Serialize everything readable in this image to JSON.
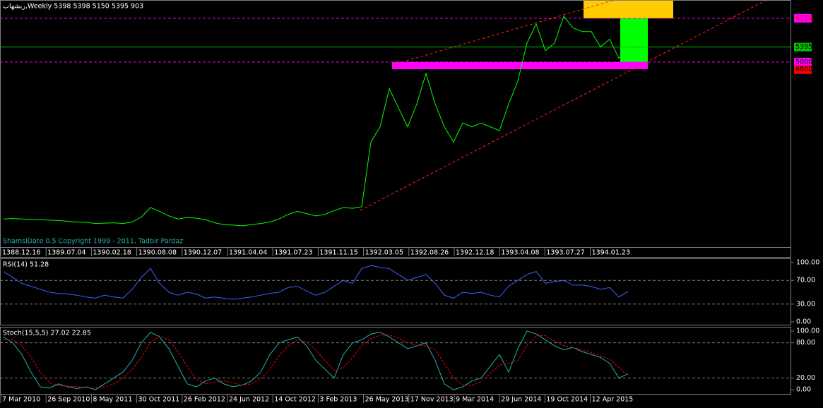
{
  "chart_data": [
    {
      "type": "line",
      "title": "ربشهاب,Weekly  5398 5398 5150 5395  903",
      "annotation": "ShamsiDate 0.5 Copyright 1999 - 2011, Tadbir Pardaz",
      "date_labels": [
        "1388.12.16",
        "1389.07.04",
        "1390.02.18",
        "1390.08.08",
        "1390.12.07",
        "1391.04.04",
        "1391.07.23",
        "1391.11.15",
        "1392.03.05",
        "1392.08.26",
        "1392.12.18",
        "1393.04.08",
        "1393.07.27",
        "1394.01.23"
      ],
      "values": [
        880,
        890,
        880,
        870,
        860,
        850,
        840,
        820,
        800,
        790,
        760,
        770,
        780,
        760,
        800,
        930,
        1180,
        1080,
        960,
        880,
        920,
        900,
        860,
        780,
        730,
        720,
        700,
        730,
        760,
        800,
        880,
        1000,
        1080,
        1020,
        960,
        1000,
        1100,
        1180,
        1160,
        1200,
        2900,
        3300,
        4300,
        3800,
        3300,
        3900,
        4700,
        3900,
        3300,
        2900,
        3400,
        3300,
        3400,
        3300,
        3200,
        3900,
        4500,
        5500,
        6000,
        5300,
        5500,
        6200,
        5900,
        5800,
        5800,
        5400,
        5600,
        5100,
        5395
      ],
      "color": "#00ff00",
      "ylim": [
        235,
        6630
      ],
      "levels": [
        {
          "value": 6150,
          "color": "#ff00ff",
          "text_color": "#ff0000",
          "line": "dashed"
        },
        {
          "value": 5395,
          "color": "#00c000",
          "text_color": "#000000",
          "line": "solid"
        },
        {
          "value": 5000,
          "color": "#ff00ff",
          "text_color": "#000000",
          "line": "dashed"
        },
        {
          "value": 4800,
          "color": "#ff0000",
          "text_color": "#000000",
          "line": "none"
        }
      ]
    },
    {
      "type": "line",
      "title": "RSI(14) 51.28",
      "values": [
        85,
        75,
        65,
        60,
        55,
        50,
        48,
        47,
        45,
        42,
        40,
        45,
        42,
        40,
        55,
        75,
        90,
        65,
        50,
        45,
        50,
        47,
        40,
        42,
        40,
        38,
        40,
        42,
        45,
        48,
        50,
        58,
        60,
        52,
        45,
        50,
        60,
        70,
        65,
        90,
        95,
        92,
        90,
        80,
        70,
        75,
        80,
        65,
        45,
        40,
        50,
        48,
        50,
        45,
        42,
        60,
        70,
        80,
        85,
        65,
        68,
        70,
        62,
        62,
        60,
        55,
        58,
        42,
        51.28
      ],
      "color": "#4060ff",
      "ylim": [
        -6,
        106
      ],
      "yticks": [
        {
          "value": 100,
          "label": "100.00"
        },
        {
          "value": 70,
          "label": "70.00"
        },
        {
          "value": 30,
          "label": "30.00"
        },
        {
          "value": 0,
          "label": "0.00"
        }
      ]
    },
    {
      "type": "line",
      "title": "Stoch(15,5,5) 27.02 22.85",
      "date_labels": [
        "7 Mar 2010",
        "26 Sep 2010",
        "8 May 2011",
        "30 Oct 2011",
        "26 Feb 2012",
        "24 Jun 2012",
        "14 Oct 2012",
        "3 Feb 2013",
        "26 May 2013",
        "17 Nov 2013",
        "9 Mar 2014",
        "29 Jun 2014",
        "19 Oct 2014",
        "12 Apr 2015"
      ],
      "series": [
        {
          "color": "#20b2aa",
          "dashed": false,
          "values": [
            90,
            80,
            60,
            30,
            5,
            3,
            10,
            5,
            2,
            5,
            0,
            10,
            20,
            30,
            50,
            80,
            98,
            90,
            70,
            40,
            10,
            5,
            15,
            20,
            10,
            5,
            8,
            15,
            30,
            60,
            80,
            85,
            90,
            75,
            50,
            35,
            20,
            60,
            80,
            85,
            95,
            98,
            90,
            80,
            70,
            75,
            80,
            50,
            10,
            0,
            5,
            15,
            20,
            40,
            60,
            30,
            70,
            100,
            95,
            85,
            75,
            68,
            72,
            65,
            60,
            55,
            45,
            20,
            27.02
          ]
        },
        {
          "color": "#ff0000",
          "dashed": true,
          "values": [
            85,
            85,
            75,
            55,
            30,
            12,
            7,
            6,
            5,
            4,
            3,
            5,
            10,
            20,
            35,
            55,
            80,
            92,
            85,
            65,
            40,
            18,
            10,
            13,
            15,
            12,
            8,
            10,
            18,
            35,
            58,
            75,
            85,
            82,
            68,
            50,
            33,
            38,
            55,
            75,
            87,
            93,
            93,
            88,
            80,
            75,
            75,
            68,
            45,
            20,
            8,
            8,
            14,
            27,
            42,
            45,
            50,
            75,
            92,
            92,
            83,
            75,
            72,
            68,
            63,
            58,
            52,
            38,
            22.85
          ]
        }
      ],
      "ylim": [
        -7,
        106
      ],
      "yticks": [
        {
          "value": 100,
          "label": "100.00"
        },
        {
          "value": 80,
          "label": "80.00"
        },
        {
          "value": 20,
          "label": "20.00"
        },
        {
          "value": 0,
          "label": "0.00"
        }
      ]
    }
  ]
}
